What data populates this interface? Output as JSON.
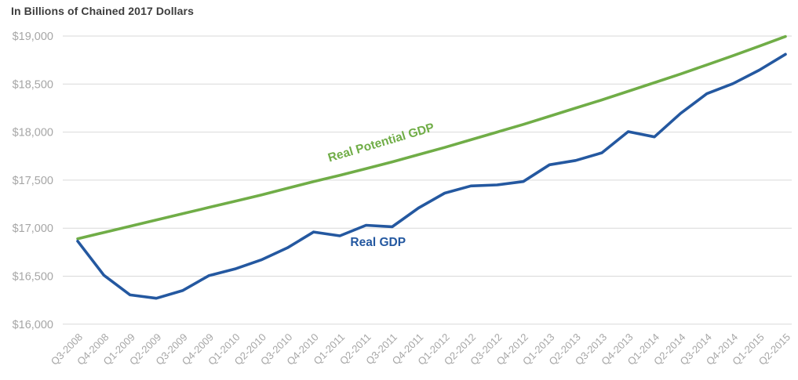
{
  "title": "In Billions of Chained 2017 Dollars",
  "colors": {
    "real_gdp_line": "#2458A0",
    "real_potential_gdp_line": "#70AD47",
    "gridline": "#D9D9D9",
    "axis_tick_text": "#A6A6A6",
    "title_text": "#3D3D3D",
    "background": "#FFFFFF"
  },
  "chart_data": {
    "type": "line",
    "title": "In Billions of Chained 2017 Dollars",
    "xlabel": "",
    "ylabel": "",
    "grid": true,
    "legend": "inline-labels",
    "ylim": [
      16000,
      19000
    ],
    "ytick_interval": 500,
    "yticks": [
      {
        "value": 16000,
        "label": "$16,000"
      },
      {
        "value": 16500,
        "label": "$16,500"
      },
      {
        "value": 17000,
        "label": "$17,000"
      },
      {
        "value": 17500,
        "label": "$17,500"
      },
      {
        "value": 18000,
        "label": "$18,000"
      },
      {
        "value": 18500,
        "label": "$18,500"
      },
      {
        "value": 19000,
        "label": "$19,000"
      }
    ],
    "categories": [
      "Q3-2008",
      "Q4-2008",
      "Q1-2009",
      "Q2-2009",
      "Q3-2009",
      "Q4-2009",
      "Q1-2010",
      "Q2-2010",
      "Q3-2010",
      "Q4-2010",
      "Q1-2011",
      "Q2-2011",
      "Q3-2011",
      "Q4-2011",
      "Q1-2012",
      "Q2-2012",
      "Q3-2012",
      "Q4-2012",
      "Q1-2013",
      "Q2-2013",
      "Q3-2013",
      "Q4-2013",
      "Q1-2014",
      "Q2-2014",
      "Q3-2014",
      "Q4-2014",
      "Q1-2015",
      "Q2-2015"
    ],
    "series": [
      {
        "name": "Real Potential GDP",
        "color": "#70AD47",
        "values": [
          16890,
          16955,
          17020,
          17085,
          17150,
          17215,
          17280,
          17345,
          17415,
          17485,
          17550,
          17620,
          17690,
          17765,
          17840,
          17920,
          18000,
          18080,
          18165,
          18250,
          18335,
          18425,
          18515,
          18605,
          18700,
          18795,
          18895,
          18995
        ]
      },
      {
        "name": "Real GDP",
        "color": "#2458A0",
        "values": [
          16865,
          16510,
          16305,
          16270,
          16350,
          16505,
          16575,
          16670,
          16795,
          16960,
          16920,
          17030,
          17015,
          17210,
          17365,
          17440,
          17450,
          17485,
          17660,
          17705,
          17785,
          18005,
          17950,
          18195,
          18400,
          18505,
          18645,
          18810
        ]
      }
    ],
    "annotations": [
      {
        "text": "Real Potential GDP",
        "color": "#70AD47",
        "x_index": 9.6,
        "value": 17690,
        "rotate": -16.5
      },
      {
        "text": "Real GDP",
        "color": "#2458A0",
        "x_index": 10.4,
        "value": 16815,
        "rotate": 0
      }
    ]
  }
}
